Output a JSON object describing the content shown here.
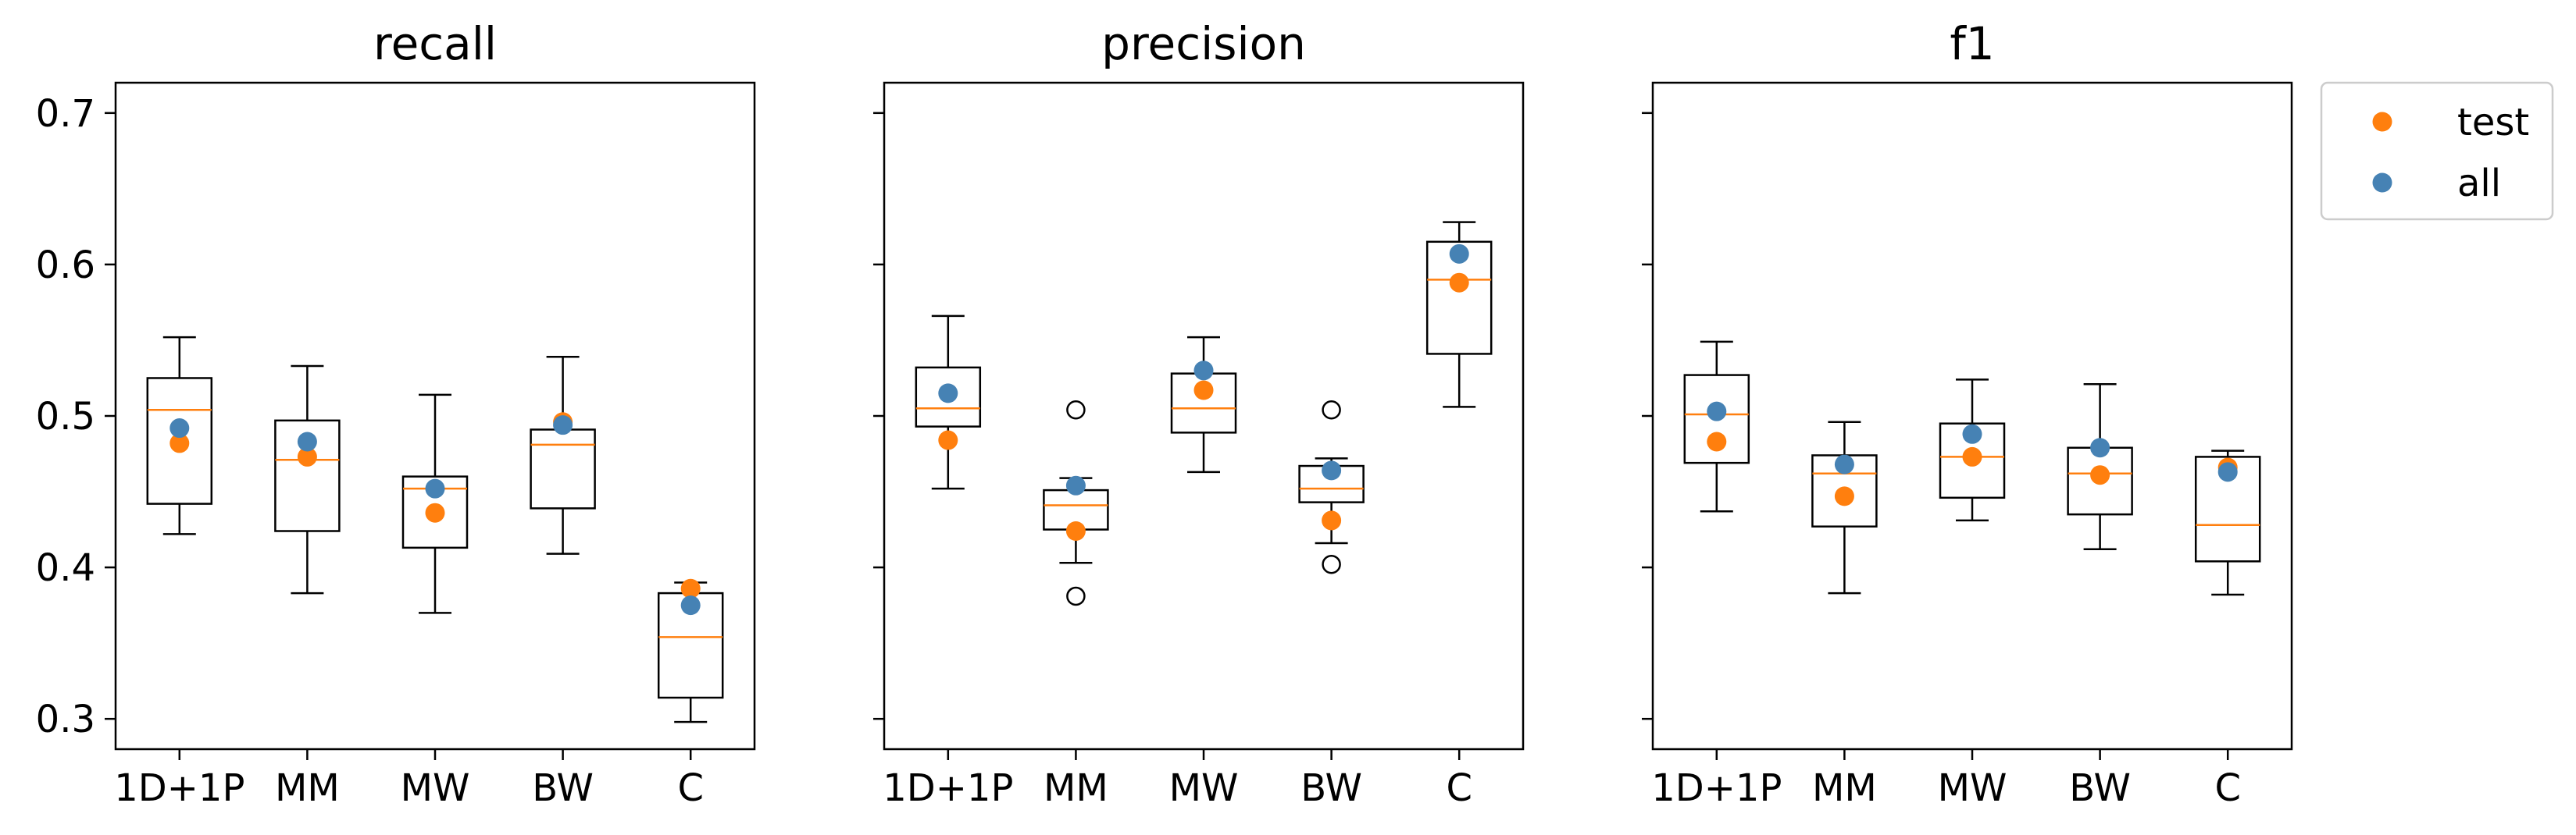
{
  "chart_data": [
    {
      "type": "box",
      "title": "recall",
      "categories": [
        "1D+1P",
        "MM",
        "MW",
        "BW",
        "C"
      ],
      "ylim": [
        0.28,
        0.72
      ],
      "yticks": [
        "0.3",
        "0.4",
        "0.5",
        "0.6",
        "0.7"
      ],
      "show_y_tick_labels": true,
      "boxes": [
        {
          "whisker_low": 0.422,
          "q1": 0.442,
          "median": 0.504,
          "q3": 0.525,
          "whisker_high": 0.552,
          "outliers": []
        },
        {
          "whisker_low": 0.383,
          "q1": 0.424,
          "median": 0.471,
          "q3": 0.497,
          "whisker_high": 0.533,
          "outliers": []
        },
        {
          "whisker_low": 0.37,
          "q1": 0.413,
          "median": 0.452,
          "q3": 0.46,
          "whisker_high": 0.514,
          "outliers": []
        },
        {
          "whisker_low": 0.409,
          "q1": 0.439,
          "median": 0.481,
          "q3": 0.491,
          "whisker_high": 0.539,
          "outliers": []
        },
        {
          "whisker_low": 0.298,
          "q1": 0.314,
          "median": 0.354,
          "q3": 0.383,
          "whisker_high": 0.39,
          "outliers": []
        }
      ],
      "series": [
        {
          "name": "test",
          "values": [
            0.482,
            0.473,
            0.436,
            0.496,
            0.386
          ]
        },
        {
          "name": "all",
          "values": [
            0.492,
            0.483,
            0.452,
            0.494,
            0.375
          ]
        }
      ]
    },
    {
      "type": "box",
      "title": "precision",
      "categories": [
        "1D+1P",
        "MM",
        "MW",
        "BW",
        "C"
      ],
      "ylim": [
        0.28,
        0.72
      ],
      "yticks": [
        "0.3",
        "0.4",
        "0.5",
        "0.6",
        "0.7"
      ],
      "show_y_tick_labels": false,
      "boxes": [
        {
          "whisker_low": 0.452,
          "q1": 0.493,
          "median": 0.505,
          "q3": 0.532,
          "whisker_high": 0.566,
          "outliers": []
        },
        {
          "whisker_low": 0.403,
          "q1": 0.425,
          "median": 0.441,
          "q3": 0.451,
          "whisker_high": 0.459,
          "outliers": [
            0.504,
            0.381
          ]
        },
        {
          "whisker_low": 0.463,
          "q1": 0.489,
          "median": 0.505,
          "q3": 0.528,
          "whisker_high": 0.552,
          "outliers": []
        },
        {
          "whisker_low": 0.416,
          "q1": 0.443,
          "median": 0.452,
          "q3": 0.467,
          "whisker_high": 0.472,
          "outliers": [
            0.504,
            0.402
          ]
        },
        {
          "whisker_low": 0.506,
          "q1": 0.541,
          "median": 0.59,
          "q3": 0.615,
          "whisker_high": 0.628,
          "outliers": []
        }
      ],
      "series": [
        {
          "name": "test",
          "values": [
            0.484,
            0.424,
            0.517,
            0.431,
            0.588
          ]
        },
        {
          "name": "all",
          "values": [
            0.515,
            0.454,
            0.53,
            0.464,
            0.607
          ]
        }
      ]
    },
    {
      "type": "box",
      "title": "f1",
      "categories": [
        "1D+1P",
        "MM",
        "MW",
        "BW",
        "C"
      ],
      "ylim": [
        0.28,
        0.72
      ],
      "yticks": [
        "0.3",
        "0.4",
        "0.5",
        "0.6",
        "0.7"
      ],
      "show_y_tick_labels": false,
      "boxes": [
        {
          "whisker_low": 0.437,
          "q1": 0.469,
          "median": 0.501,
          "q3": 0.527,
          "whisker_high": 0.549,
          "outliers": []
        },
        {
          "whisker_low": 0.383,
          "q1": 0.427,
          "median": 0.462,
          "q3": 0.474,
          "whisker_high": 0.496,
          "outliers": []
        },
        {
          "whisker_low": 0.431,
          "q1": 0.446,
          "median": 0.473,
          "q3": 0.495,
          "whisker_high": 0.524,
          "outliers": []
        },
        {
          "whisker_low": 0.412,
          "q1": 0.435,
          "median": 0.462,
          "q3": 0.479,
          "whisker_high": 0.521,
          "outliers": []
        },
        {
          "whisker_low": 0.382,
          "q1": 0.404,
          "median": 0.428,
          "q3": 0.473,
          "whisker_high": 0.477,
          "outliers": []
        }
      ],
      "series": [
        {
          "name": "test",
          "values": [
            0.483,
            0.447,
            0.473,
            0.461,
            0.466
          ]
        },
        {
          "name": "all",
          "values": [
            0.503,
            0.468,
            0.488,
            0.479,
            0.463
          ]
        }
      ]
    }
  ],
  "legend": {
    "placement": "outside-right-top",
    "items": [
      {
        "label": "test",
        "color": "#ff7f0e"
      },
      {
        "label": "all",
        "color": "#4682b4"
      }
    ]
  },
  "colors": {
    "test": "#ff7f0e",
    "all": "#4682b4",
    "median": "#ff7f0e",
    "box": "#000000"
  }
}
